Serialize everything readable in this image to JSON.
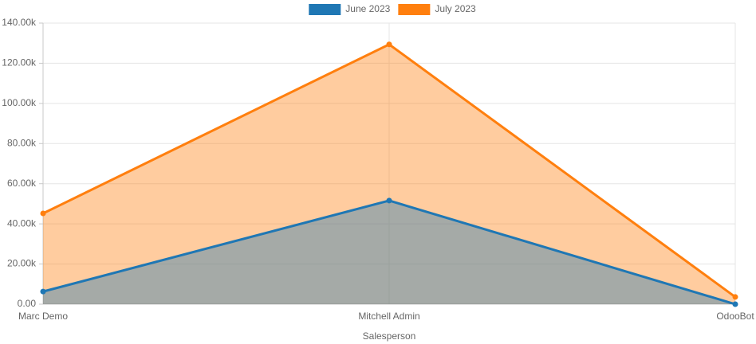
{
  "chart_data": {
    "type": "area",
    "x_label": "Salesperson",
    "categories": [
      "Marc Demo",
      "Mitchell Admin",
      "OdooBot"
    ],
    "series": [
      {
        "name": "June 2023",
        "color": "#1f77b4",
        "values": [
          6300,
          51600,
          0
        ]
      },
      {
        "name": "July 2023",
        "color": "#ff7f0e",
        "values": [
          45200,
          129400,
          3600
        ]
      }
    ],
    "ylim": [
      0,
      140000
    ],
    "yticks": [
      {
        "value": 0,
        "label": "0.00"
      },
      {
        "value": 20000,
        "label": "20.00k"
      },
      {
        "value": 40000,
        "label": "40.00k"
      },
      {
        "value": 60000,
        "label": "60.00k"
      },
      {
        "value": 80000,
        "label": "80.00k"
      },
      {
        "value": 100000,
        "label": "100.00k"
      },
      {
        "value": 120000,
        "label": "120.00k"
      },
      {
        "value": 140000,
        "label": "140.00k"
      }
    ],
    "grid": true,
    "legend": "top"
  }
}
